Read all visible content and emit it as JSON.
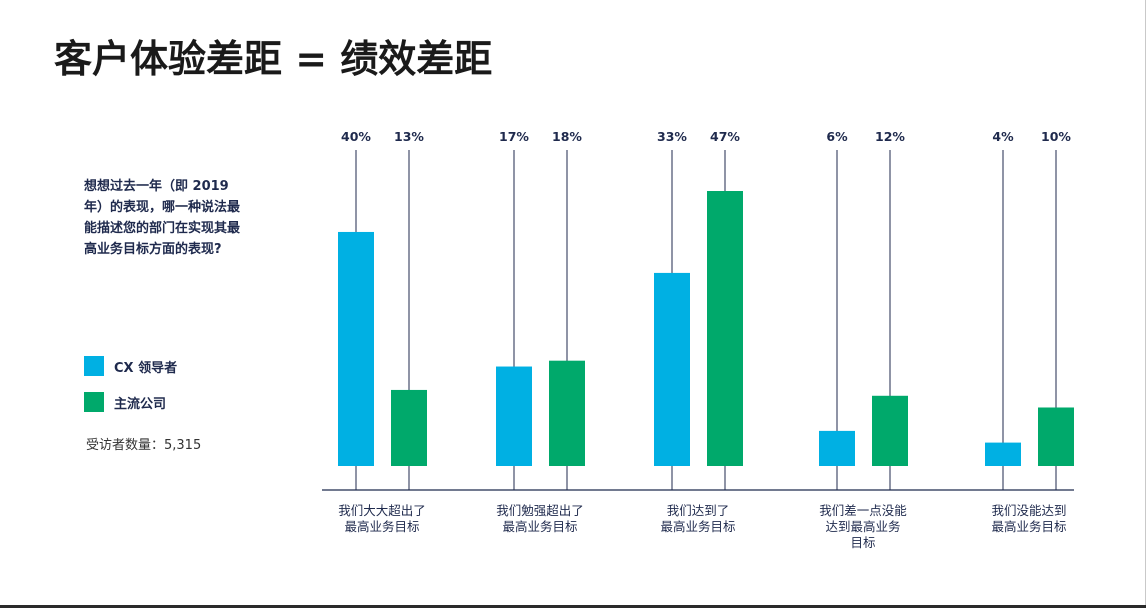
{
  "title": "客户体验差距 = 绩效差距",
  "question": "想想过去一年（即 2019 年）的表现，哪一种说法最能描述您的部门在实现其最高业务目标方面的表现?",
  "respondents": "受访者数量：5,315",
  "colors": {
    "cx_leaders": "#00b0e3",
    "mainstream": "#00a96b",
    "axis": "#1f2a4d",
    "text": "#1f2a4d"
  },
  "chart_data": {
    "type": "bar",
    "categories": [
      [
        "我们大大超出了",
        "最高业务目标"
      ],
      [
        "我们勉强超出了",
        "最高业务目标"
      ],
      [
        "我们达到了",
        "最高业务目标"
      ],
      [
        "我们差一点没能",
        "达到最高业务",
        "目标"
      ],
      [
        "我们没能达到",
        "最高业务目标"
      ]
    ],
    "series": [
      {
        "name": "CX 领导者",
        "values": [
          40,
          17,
          33,
          6,
          4
        ],
        "labels": [
          "40%",
          "17%",
          "33%",
          "6%",
          "4%"
        ],
        "color": "#00b0e3"
      },
      {
        "name": "主流公司",
        "values": [
          13,
          18,
          47,
          12,
          10
        ],
        "labels": [
          "13%",
          "18%",
          "47%",
          "12%",
          "10%"
        ],
        "color": "#00a96b"
      }
    ],
    "ylim": [
      0,
      47
    ],
    "legend": "left",
    "grid": false
  }
}
